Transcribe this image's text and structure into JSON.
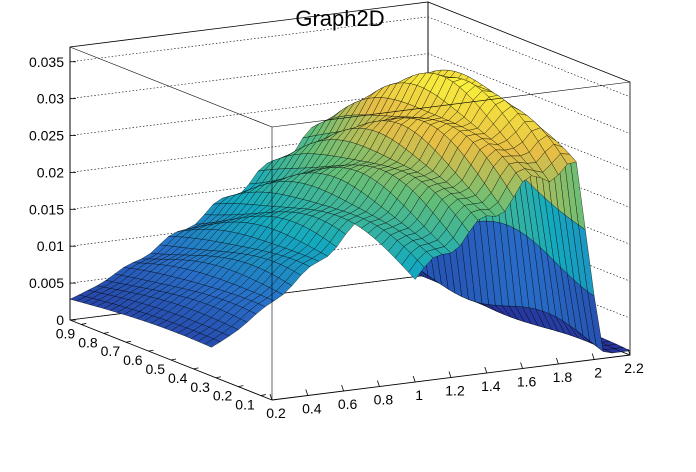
{
  "chart_data": {
    "type": "surface3d",
    "title": "Graph2D",
    "x_axis": {
      "label": "",
      "range": [
        0.2,
        2.2
      ],
      "ticks": [
        "0.2",
        "0.4",
        "0.6",
        "0.8",
        "1",
        "1.2",
        "1.4",
        "1.6",
        "1.8",
        "2",
        "2.2"
      ]
    },
    "y_axis": {
      "label": "",
      "range": [
        0.05,
        0.95
      ],
      "ticks": [
        "0.1",
        "0.2",
        "0.3",
        "0.4",
        "0.5",
        "0.6",
        "0.7",
        "0.8",
        "0.9"
      ]
    },
    "z_axis": {
      "label": "",
      "range": [
        0,
        0.037
      ],
      "ticks": [
        "0",
        "0.005",
        "0.01",
        "0.015",
        "0.02",
        "0.025",
        "0.03",
        "0.035"
      ]
    },
    "grid": true,
    "colormap": "viridis-like",
    "surface_notes": "z grows with x up to ~1.0-1.9 (max ~0.034), drops to ~0 near x>2.05; region x<1.0, y<0.3 empty"
  }
}
